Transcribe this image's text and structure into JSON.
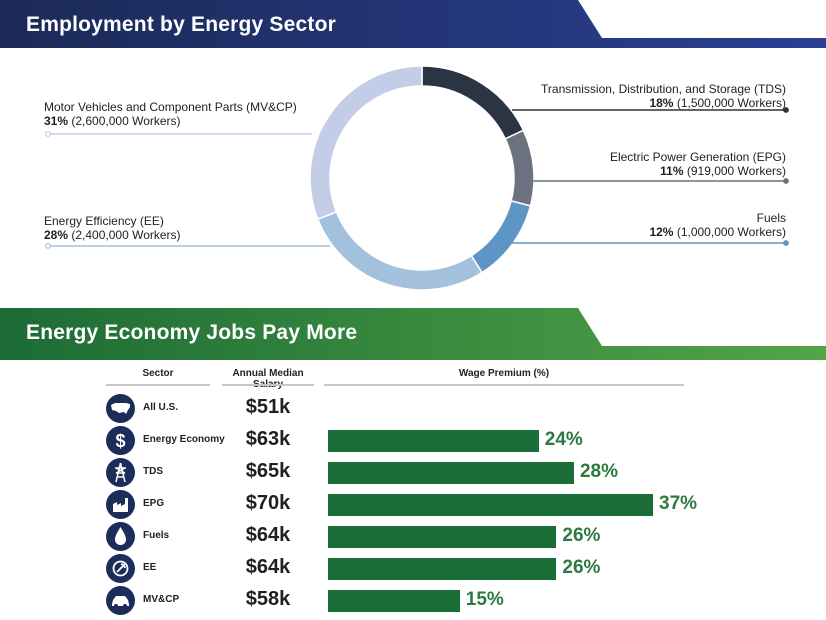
{
  "section1": {
    "title": "Employment by Energy Sector"
  },
  "section2": {
    "title": "Energy Economy Jobs Pay More"
  },
  "chart_data": [
    {
      "type": "pie",
      "title": "Employment by Energy Sector",
      "slices": [
        {
          "name": "Transmission, Distribution, and Storage (TDS)",
          "percent": 18,
          "percent_label": "18%",
          "workers_label": "(1,500,000 Workers)",
          "workers": 1500000,
          "color": "#2b3442"
        },
        {
          "name": "Electric Power Generation (EPG)",
          "percent": 11,
          "percent_label": "11%",
          "workers_label": "(919,000 Workers)",
          "workers": 919000,
          "color": "#6c7180"
        },
        {
          "name": "Fuels",
          "percent": 12,
          "percent_label": "12%",
          "workers_label": "(1,000,000 Workers)",
          "workers": 1000000,
          "color": "#5d95c4"
        },
        {
          "name": "Energy Efficiency (EE)",
          "percent": 28,
          "percent_label": "28%",
          "workers_label": "(2,400,000 Workers)",
          "workers": 2400000,
          "color": "#a3c0dd"
        },
        {
          "name": "Motor Vehicles and Component Parts (MV&CP)",
          "percent": 31,
          "percent_label": "31%",
          "workers_label": "(2,600,000 Workers)",
          "workers": 2600000,
          "color": "#c3cde7"
        }
      ]
    },
    {
      "type": "bar",
      "orientation": "horizontal",
      "title": "Energy Economy Jobs Pay More",
      "columns": [
        "Sector",
        "Annual Median Salary",
        "Wage Premium (%)"
      ],
      "xlim": [
        0,
        37
      ],
      "rows": [
        {
          "sector": "All U.S.",
          "icon": "us-map-icon",
          "salary": "$51k",
          "premium": null,
          "premium_label": ""
        },
        {
          "sector": "Energy Economy",
          "icon": "dollar-icon",
          "salary": "$63k",
          "premium": 24,
          "premium_label": "24%"
        },
        {
          "sector": "TDS",
          "icon": "transmission-tower-icon",
          "salary": "$65k",
          "premium": 28,
          "premium_label": "28%"
        },
        {
          "sector": "EPG",
          "icon": "power-plant-icon",
          "salary": "$70k",
          "premium": 37,
          "premium_label": "37%"
        },
        {
          "sector": "Fuels",
          "icon": "fuel-drop-icon",
          "salary": "$64k",
          "premium": 26,
          "premium_label": "26%"
        },
        {
          "sector": "EE",
          "icon": "efficiency-plug-icon",
          "salary": "$64k",
          "premium": 26,
          "premium_label": "26%"
        },
        {
          "sector": "MV&CP",
          "icon": "car-icon",
          "salary": "$58k",
          "premium": 15,
          "premium_label": "15%"
        }
      ],
      "bar_color": "#1b6e37",
      "label_color": "#2d7a3e"
    }
  ],
  "colors": {
    "navy": "#1c2d5a",
    "green": "#1b6e37"
  }
}
